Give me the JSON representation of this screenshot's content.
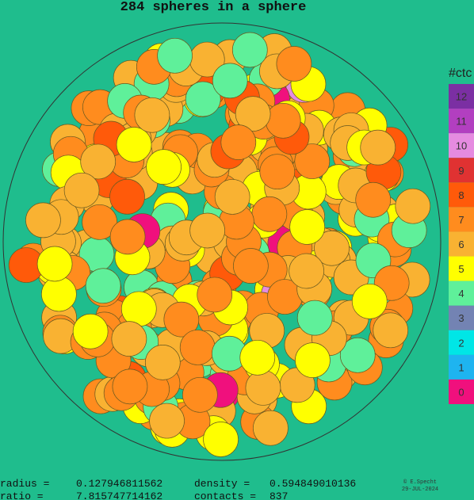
{
  "title": "284 spheres in a sphere",
  "legend": {
    "title": "#ctc",
    "items": [
      {
        "label": "12",
        "color": "#7b2fa3"
      },
      {
        "label": "11",
        "color": "#b23fc0"
      },
      {
        "label": "10",
        "color": "#e58be0"
      },
      {
        "label": "9",
        "color": "#e03232"
      },
      {
        "label": "8",
        "color": "#ff5a0a"
      },
      {
        "label": "7",
        "color": "#ff8c1e"
      },
      {
        "label": "6",
        "color": "#f9b232"
      },
      {
        "label": "5",
        "color": "#ffff00"
      },
      {
        "label": "4",
        "color": "#5ff09a"
      },
      {
        "label": "3",
        "color": "#7383b3"
      },
      {
        "label": "2",
        "color": "#00e6e6"
      },
      {
        "label": "1",
        "color": "#1eb4f0"
      },
      {
        "label": "0",
        "color": "#f0107d"
      }
    ]
  },
  "stats": {
    "radius_label": "radius =",
    "radius": "0.127946811562",
    "density_label": "density  =",
    "density": "0.594849010136",
    "ratio_label": "ratio  =",
    "ratio": "7.815747714162",
    "contacts_label": "contacts =",
    "contacts": "837"
  },
  "credit": {
    "author": "© E.Specht",
    "date": "29-JUL-2024"
  }
}
